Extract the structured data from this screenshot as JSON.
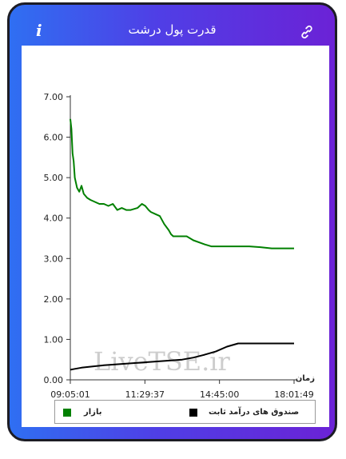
{
  "header": {
    "title": "قدرت پول درشت",
    "info_icon": "info-icon",
    "link_icon": "link-icon"
  },
  "watermark": "LiveTSE.ir",
  "chart_data": {
    "type": "line",
    "xlabel": "زمان",
    "x_ticks": [
      "09:05:01",
      "11:29:37",
      "14:45:00",
      "18:01:49"
    ],
    "y_ticks": [
      "0.00",
      "1.00",
      "2.00",
      "3.00",
      "4.00",
      "5.00",
      "6.00",
      "7.00"
    ],
    "ylim": [
      0,
      7
    ],
    "xlim": [
      0,
      1
    ],
    "grid": false,
    "legend_position": "bottom",
    "series": [
      {
        "name": "بازار",
        "color": "#008000",
        "x": [
          0.0,
          0.005,
          0.01,
          0.015,
          0.02,
          0.03,
          0.04,
          0.05,
          0.06,
          0.075,
          0.09,
          0.11,
          0.13,
          0.15,
          0.17,
          0.19,
          0.21,
          0.23,
          0.25,
          0.27,
          0.3,
          0.32,
          0.335,
          0.35,
          0.36,
          0.38,
          0.4,
          0.42,
          0.44,
          0.45,
          0.46,
          0.48,
          0.5,
          0.52,
          0.55,
          0.6,
          0.63,
          0.65,
          0.7,
          0.75,
          0.8,
          0.85,
          0.9,
          0.95,
          1.0
        ],
        "values": [
          6.45,
          6.2,
          5.6,
          5.4,
          5.0,
          4.75,
          4.65,
          4.8,
          4.6,
          4.5,
          4.45,
          4.4,
          4.35,
          4.35,
          4.3,
          4.35,
          4.2,
          4.25,
          4.2,
          4.2,
          4.25,
          4.35,
          4.3,
          4.2,
          4.15,
          4.1,
          4.05,
          3.85,
          3.7,
          3.6,
          3.55,
          3.55,
          3.55,
          3.55,
          3.45,
          3.35,
          3.3,
          3.3,
          3.3,
          3.3,
          3.3,
          3.28,
          3.25,
          3.25,
          3.25
        ]
      },
      {
        "name": "صندوق های درآمد ثابت",
        "color": "#000000",
        "x": [
          0.0,
          0.02,
          0.05,
          0.1,
          0.15,
          0.2,
          0.25,
          0.3,
          0.35,
          0.4,
          0.45,
          0.5,
          0.55,
          0.6,
          0.65,
          0.7,
          0.75,
          0.8,
          0.85,
          0.9,
          0.95,
          1.0
        ],
        "values": [
          0.25,
          0.27,
          0.3,
          0.33,
          0.36,
          0.38,
          0.4,
          0.42,
          0.44,
          0.46,
          0.48,
          0.5,
          0.55,
          0.62,
          0.7,
          0.82,
          0.9,
          0.9,
          0.9,
          0.9,
          0.9,
          0.9
        ]
      }
    ]
  }
}
